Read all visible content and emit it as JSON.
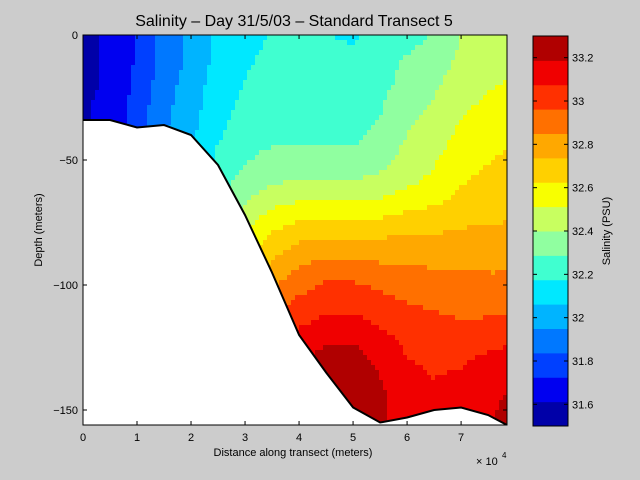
{
  "chart_data": {
    "type": "heatmap",
    "title": "Salinity – Day 31/5/03 – Standard Transect 5",
    "xlabel": "Distance along transect (meters)",
    "ylabel": "Depth (meters)",
    "x_multiplier_label": "× 10",
    "x_multiplier_exp": "4",
    "xlim": [
      0,
      78500
    ],
    "ylim": [
      -156,
      0
    ],
    "x_ticks": [
      {
        "value": 0,
        "label": "0"
      },
      {
        "value": 10000,
        "label": "1"
      },
      {
        "value": 20000,
        "label": "2"
      },
      {
        "value": 30000,
        "label": "3"
      },
      {
        "value": 40000,
        "label": "4"
      },
      {
        "value": 50000,
        "label": "5"
      },
      {
        "value": 60000,
        "label": "6"
      },
      {
        "value": 70000,
        "label": "7"
      }
    ],
    "y_ticks": [
      {
        "value": 0,
        "label": "0"
      },
      {
        "value": -50,
        "label": "−50"
      },
      {
        "value": -100,
        "label": "−100"
      },
      {
        "value": -150,
        "label": "−150"
      }
    ],
    "colorbar": {
      "label": "Salinity (PSU)",
      "range": [
        31.5,
        33.3
      ],
      "ticks": [
        {
          "value": 31.6,
          "label": "31.6"
        },
        {
          "value": 31.8,
          "label": "31.8"
        },
        {
          "value": 32.0,
          "label": "32"
        },
        {
          "value": 32.2,
          "label": "32.2"
        },
        {
          "value": 32.4,
          "label": "32.4"
        },
        {
          "value": 32.6,
          "label": "32.6"
        },
        {
          "value": 32.8,
          "label": "32.8"
        },
        {
          "value": 33.0,
          "label": "33"
        },
        {
          "value": 33.2,
          "label": "33.2"
        }
      ],
      "colors": [
        "#0000a8",
        "#0000f0",
        "#0040ff",
        "#0078ff",
        "#00b4ff",
        "#00e8ff",
        "#40ffd0",
        "#90ffa0",
        "#c8ff60",
        "#f8ff00",
        "#ffd000",
        "#ffa800",
        "#ff7000",
        "#ff3000",
        "#f00000",
        "#b00000"
      ]
    },
    "bathymetry": [
      [
        0,
        -34
      ],
      [
        5000,
        -34
      ],
      [
        10000,
        -37
      ],
      [
        15000,
        -36
      ],
      [
        20000,
        -40
      ],
      [
        25000,
        -52
      ],
      [
        30000,
        -72
      ],
      [
        35000,
        -95
      ],
      [
        40000,
        -120
      ],
      [
        45000,
        -135
      ],
      [
        50000,
        -149
      ],
      [
        55000,
        -155
      ],
      [
        60000,
        -153
      ],
      [
        65000,
        -150
      ],
      [
        70000,
        -149
      ],
      [
        75000,
        -152
      ],
      [
        78500,
        -156
      ]
    ],
    "x_grid": [
      0,
      5000,
      10000,
      15000,
      20000,
      25000,
      30000,
      35000,
      40000,
      45000,
      50000,
      55000,
      60000,
      65000,
      70000,
      75000,
      78500
    ],
    "depth_grid": [
      0,
      -10,
      -20,
      -30,
      -40,
      -50,
      -60,
      -70,
      -80,
      -90,
      -100,
      -110,
      -120,
      -130,
      -140,
      -150,
      -156
    ],
    "salinity": [
      [
        31.6,
        31.62,
        31.74,
        31.88,
        31.98,
        32.08,
        32.14,
        32.18,
        32.18,
        32.18,
        32.16,
        32.2,
        32.24,
        32.3,
        32.4,
        32.44,
        32.46
      ],
      [
        31.6,
        31.62,
        31.74,
        31.88,
        31.98,
        32.1,
        32.16,
        32.2,
        32.2,
        32.2,
        32.2,
        32.24,
        32.3,
        32.34,
        32.42,
        32.46,
        32.48
      ],
      [
        31.6,
        31.62,
        31.76,
        31.9,
        32.0,
        32.12,
        32.18,
        32.22,
        32.22,
        32.22,
        32.22,
        32.26,
        32.32,
        32.38,
        32.46,
        32.5,
        32.52
      ],
      [
        31.6,
        31.64,
        31.78,
        31.92,
        32.02,
        32.14,
        32.2,
        32.24,
        32.24,
        32.24,
        32.24,
        32.28,
        32.36,
        32.42,
        32.5,
        32.54,
        32.56
      ],
      [
        31.6,
        31.64,
        31.8,
        31.94,
        32.04,
        32.16,
        32.24,
        32.26,
        32.26,
        32.26,
        32.26,
        32.32,
        32.4,
        32.46,
        32.54,
        32.58,
        32.6
      ],
      [
        31.6,
        31.66,
        31.82,
        31.96,
        32.06,
        32.2,
        32.28,
        32.32,
        32.32,
        32.32,
        32.32,
        32.36,
        32.44,
        32.5,
        32.58,
        32.62,
        32.64
      ],
      [
        31.6,
        31.66,
        31.84,
        31.98,
        32.08,
        32.24,
        32.34,
        32.4,
        32.42,
        32.42,
        32.42,
        32.44,
        32.5,
        32.54,
        32.62,
        32.66,
        32.68
      ],
      [
        31.6,
        31.68,
        31.86,
        32.0,
        32.1,
        32.3,
        32.42,
        32.52,
        32.56,
        32.58,
        32.58,
        32.58,
        32.62,
        32.64,
        32.68,
        32.7,
        32.72
      ],
      [
        31.6,
        31.68,
        31.88,
        32.02,
        32.14,
        32.36,
        32.52,
        32.64,
        32.7,
        32.72,
        32.72,
        32.72,
        32.74,
        32.74,
        32.76,
        32.76,
        32.76
      ],
      [
        31.6,
        31.7,
        31.9,
        32.04,
        32.18,
        32.42,
        32.6,
        32.74,
        32.82,
        32.86,
        32.86,
        32.84,
        32.84,
        32.82,
        32.82,
        32.82,
        32.82
      ],
      [
        31.6,
        31.7,
        31.92,
        32.06,
        32.22,
        32.48,
        32.68,
        32.84,
        32.92,
        32.98,
        32.98,
        32.94,
        32.92,
        32.9,
        32.88,
        32.88,
        32.88
      ],
      [
        31.6,
        31.72,
        31.94,
        32.08,
        32.26,
        32.54,
        32.76,
        32.94,
        33.02,
        33.06,
        33.06,
        33.02,
        32.98,
        32.96,
        32.94,
        32.94,
        32.94
      ],
      [
        31.6,
        31.72,
        31.96,
        32.1,
        32.3,
        32.6,
        32.84,
        33.02,
        33.1,
        33.14,
        33.16,
        33.1,
        33.04,
        33.02,
        33.0,
        33.02,
        33.04
      ],
      [
        31.6,
        31.74,
        31.98,
        32.12,
        32.34,
        32.66,
        32.9,
        33.08,
        33.18,
        33.24,
        33.24,
        33.16,
        33.08,
        33.06,
        33.06,
        33.1,
        33.12
      ],
      [
        31.6,
        31.74,
        32.0,
        32.14,
        32.38,
        32.7,
        32.96,
        33.14,
        33.24,
        33.3,
        33.3,
        33.2,
        33.1,
        33.08,
        33.1,
        33.16,
        33.18
      ],
      [
        31.6,
        31.76,
        32.02,
        32.16,
        32.4,
        32.74,
        33.0,
        33.18,
        33.28,
        33.32,
        33.32,
        33.22,
        33.12,
        33.1,
        33.12,
        33.18,
        33.2
      ],
      [
        31.6,
        31.76,
        32.02,
        32.16,
        32.4,
        32.74,
        33.0,
        33.18,
        33.28,
        33.32,
        33.32,
        33.22,
        33.12,
        33.1,
        33.12,
        33.18,
        33.2
      ]
    ]
  }
}
